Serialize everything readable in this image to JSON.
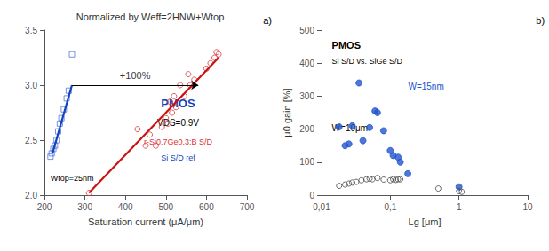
{
  "chart_data": [
    {
      "type": "scatter",
      "title": "Normalized by Weff=2HNW+Wtop",
      "xlabel": "Saturation current (μA/μm)",
      "xlim": [
        200,
        700
      ],
      "xticks": [
        200,
        300,
        400,
        500,
        600,
        700
      ],
      "ylim": [
        2.0,
        3.5
      ],
      "yticks": [
        {
          "value": 2.0,
          "label": "2.0"
        },
        2.5,
        {
          "value": 3.0,
          "label": "3.0"
        },
        3.5
      ],
      "grid": false,
      "series": [
        {
          "type": "scatter",
          "marker": "square-open",
          "color": "#5577DD",
          "x": [
            215,
            218,
            222,
            226,
            230,
            234,
            238,
            242,
            248,
            255,
            260,
            268
          ],
          "values": [
            2.35,
            2.38,
            2.42,
            2.45,
            2.5,
            2.58,
            2.65,
            2.7,
            2.78,
            2.88,
            2.95,
            3.28
          ]
        },
        {
          "type": "line",
          "color": "#1144BB",
          "x": [
            220,
            268
          ],
          "values": [
            2.38,
            3.0
          ]
        },
        {
          "type": "scatter",
          "marker": "circle-open",
          "color": "#DD3333",
          "x": [
            310,
            430,
            450,
            460,
            475,
            490,
            500,
            505,
            510,
            515,
            520,
            525,
            535,
            545,
            555,
            560,
            570,
            600,
            610,
            620,
            625,
            630
          ],
          "values": [
            2.02,
            2.6,
            2.45,
            2.55,
            2.45,
            2.62,
            2.7,
            2.65,
            2.85,
            2.75,
            2.9,
            2.8,
            3.0,
            2.9,
            3.1,
            3.0,
            3.05,
            3.15,
            3.2,
            3.25,
            3.3,
            3.28
          ]
        },
        {
          "type": "line",
          "color": "#CC1111",
          "x": [
            310,
            630
          ],
          "values": [
            2.02,
            3.25
          ]
        }
      ],
      "annotations": [
        {
          "text": "+100%",
          "x": 424,
          "y": 3.03,
          "arrow_from": [
            268,
            3.0
          ],
          "arrow_to": [
            580,
            3.0
          ]
        },
        {
          "text": "PMOS",
          "color": "#1144BB"
        },
        {
          "text": "VDS=0.9V"
        },
        {
          "text": "r-Si0.7Ge0.3:B S/D",
          "color": "#DD3333"
        },
        {
          "text": "Si S/D ref",
          "color": "#1144BB"
        },
        {
          "text": "Wtop=25nm"
        },
        {
          "text": "a)"
        }
      ]
    },
    {
      "type": "scatter",
      "xlabel": "Lg [μm]",
      "ylabel": "μ0 gain [%]",
      "log": "x",
      "xlim": [
        0.01,
        10
      ],
      "xticks": [
        {
          "value": 0.01,
          "label": "0,01"
        },
        {
          "value": 0.1,
          "label": "0,1"
        },
        1,
        10
      ],
      "ylim": [
        0,
        500
      ],
      "yticks": [
        0,
        100,
        200,
        300,
        400,
        500
      ],
      "grid": false,
      "series": [
        {
          "type": "scatter",
          "marker": "circle",
          "color": "#2255CC",
          "x": [
            0.018,
            0.022,
            0.025,
            0.028,
            0.035,
            0.04,
            0.05,
            0.06,
            0.065,
            0.08,
            0.1,
            0.11,
            0.13,
            0.14,
            0.18,
            1.0
          ],
          "values": [
            207,
            150,
            155,
            210,
            340,
            165,
            205,
            255,
            250,
            195,
            135,
            120,
            115,
            100,
            65,
            25
          ]
        },
        {
          "type": "scatter",
          "marker": "circle-open",
          "color": "#444444",
          "x": [
            0.018,
            0.022,
            0.025,
            0.028,
            0.032,
            0.038,
            0.045,
            0.05,
            0.055,
            0.065,
            0.08,
            0.1,
            0.11,
            0.12,
            0.13,
            0.14,
            0.5,
            1.0,
            1.1
          ],
          "values": [
            28,
            32,
            35,
            38,
            40,
            45,
            48,
            50,
            48,
            52,
            47,
            45,
            48,
            46,
            48,
            48,
            20,
            12,
            10
          ]
        }
      ],
      "annotations": [
        {
          "text": "PMOS"
        },
        {
          "text": "Si S/D vs. SiGe S/D"
        },
        {
          "text": "W=15nm",
          "color": "#2255CC"
        },
        {
          "text": "W=10μm"
        },
        {
          "text": "b)"
        }
      ]
    }
  ]
}
